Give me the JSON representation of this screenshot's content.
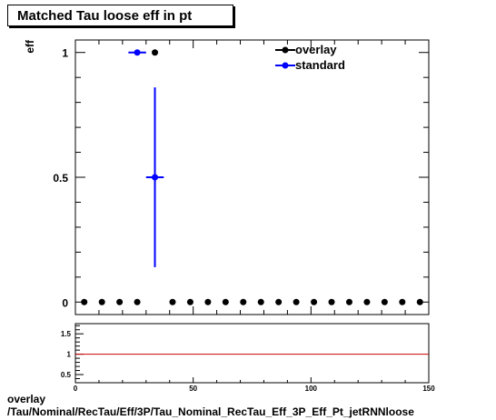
{
  "title": "Matched Tau loose eff in pt",
  "footer": {
    "line1": "overlay",
    "line2": "/Tau/Nominal/RecTau/Eff/3P/Tau_Nominal_RecTau_Eff_3P_Eff_Pt_jetRNNloose"
  },
  "colors": {
    "overlay": "#000000",
    "standard": "#0000ff",
    "ratio_line": "#cc0000"
  },
  "chart_data": [
    {
      "type": "scatter",
      "ylabel": "eff",
      "xlabel": "",
      "xlim": [
        0,
        150
      ],
      "ylim": [
        -0.05,
        1.05
      ],
      "y_ticks": [
        0,
        0.5,
        1
      ],
      "y_tick_labels": [
        "0",
        "0.5",
        "1"
      ],
      "legend": [
        "overlay",
        "standard"
      ],
      "legend_position": "top-right",
      "series": [
        {
          "name": "overlay",
          "x": [
            3.75,
            11.25,
            18.75,
            26.25,
            33.75,
            41.25,
            48.75,
            56.25,
            63.75,
            71.25,
            78.75,
            86.25,
            93.75,
            101.25,
            108.75,
            116.25,
            123.75,
            131.25,
            138.75,
            146.25
          ],
          "y": [
            0,
            0,
            0,
            0,
            1,
            0,
            0,
            0,
            0,
            0,
            0,
            0,
            0,
            0,
            0,
            0,
            0,
            0,
            0,
            0
          ]
        },
        {
          "name": "standard",
          "x": [
            26.25,
            33.75
          ],
          "y": [
            1,
            0.5
          ],
          "x_err": [
            3.75,
            3.75
          ],
          "y_err_low": [
            0,
            0.36
          ],
          "y_err_high": [
            0,
            0.36
          ]
        }
      ]
    },
    {
      "type": "line",
      "xlim": [
        0,
        150
      ],
      "ylim": [
        0.3,
        1.75
      ],
      "x_ticks": [
        0,
        50,
        100,
        150
      ],
      "x_tick_labels": [
        "0",
        "50",
        "100",
        "150"
      ],
      "y_ticks": [
        0.5,
        1,
        1.5
      ],
      "y_tick_labels": [
        "0.5",
        "1",
        "1.5"
      ],
      "reference_y": 1
    }
  ]
}
